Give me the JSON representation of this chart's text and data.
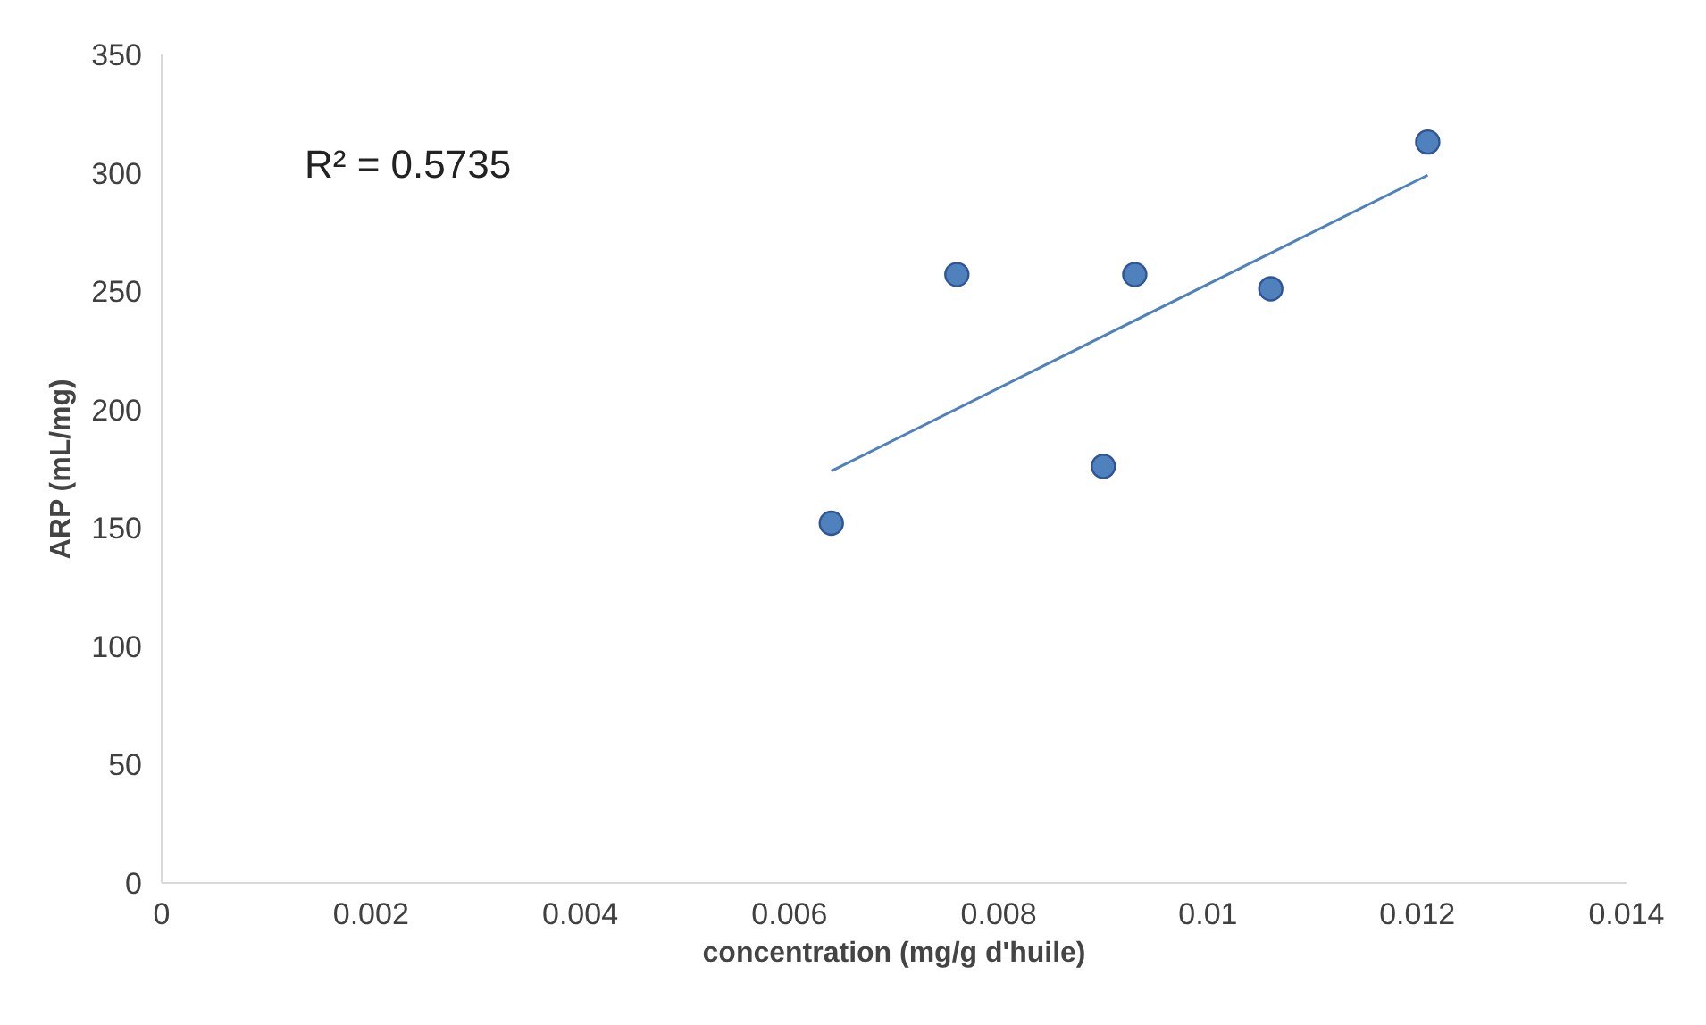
{
  "chart_data": {
    "type": "scatter",
    "xlabel": "concentration (mg/g d'huile)",
    "ylabel": "ARP (mL/mg)",
    "annotations": [
      "R² = 0.5735"
    ],
    "series": [
      {
        "color": "#4f81bd",
        "marker": "circle",
        "x": [
          0.0064,
          0.0076,
          0.009,
          0.0093,
          0.0106,
          0.0121
        ],
        "values": [
          152,
          257,
          176,
          257,
          251,
          313
        ]
      },
      {
        "type": "line",
        "marker": "none",
        "color": "#4f81bd",
        "x": [
          0.0064,
          0.0121
        ],
        "values": [
          174,
          299
        ]
      }
    ],
    "xlim": [
      0,
      0.014
    ],
    "xticks": [
      0,
      0.002,
      0.004,
      0.006,
      0.008,
      0.01,
      0.012,
      0.014
    ],
    "ylim": [
      0,
      350
    ],
    "yticks": [
      0,
      50,
      100,
      150,
      200,
      250,
      300,
      350
    ],
    "grid": false
  }
}
